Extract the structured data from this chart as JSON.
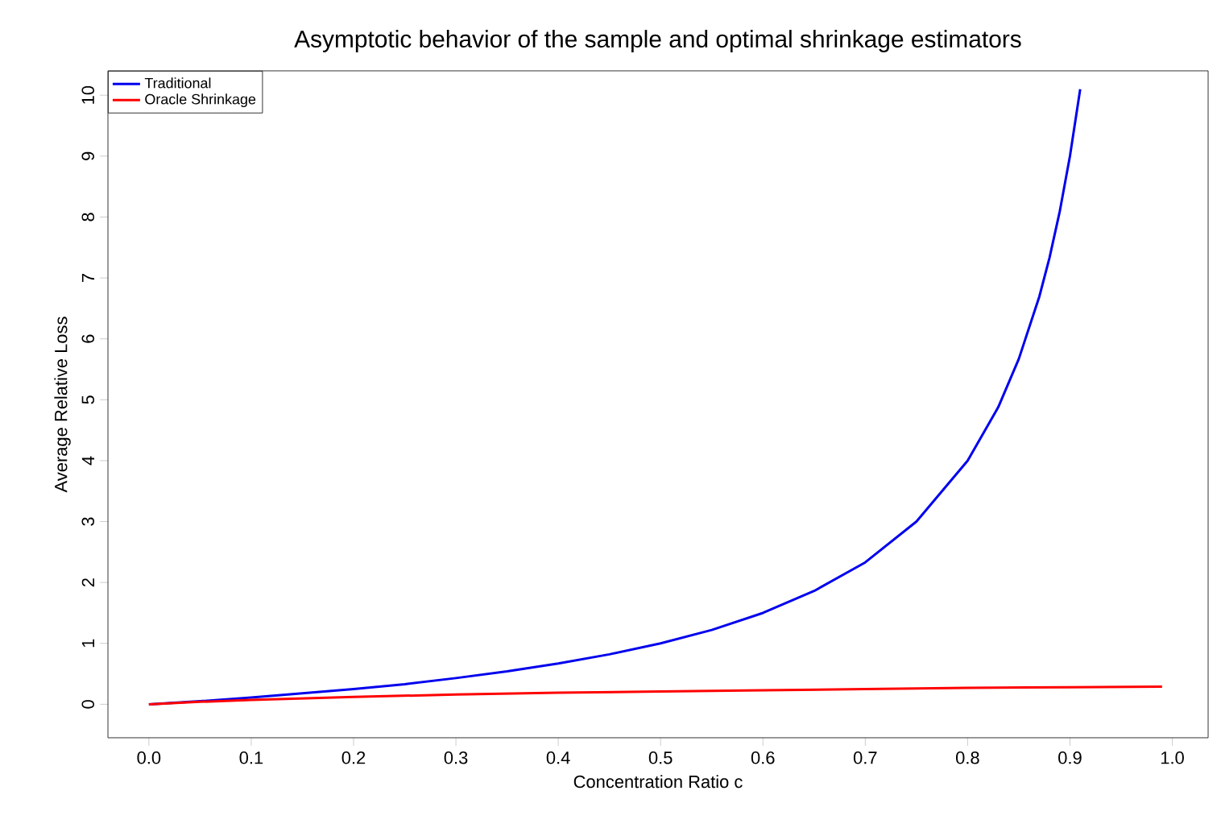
{
  "chart_data": {
    "type": "line",
    "title": "Asymptotic behavior of the sample and optimal shrinkage estimators",
    "xlabel": "Concentration Ratio c",
    "ylabel": "Average Relative Loss",
    "xlim": [
      -0.04,
      1.035
    ],
    "ylim": [
      -0.55,
      10.4
    ],
    "xticks": [
      {
        "value": 0,
        "label": "0.0"
      },
      0.1,
      0.2,
      0.3,
      0.4,
      0.5,
      0.6,
      0.7,
      0.8,
      0.9,
      {
        "value": 1,
        "label": "1.0"
      }
    ],
    "yticks": [
      0,
      1,
      2,
      3,
      4,
      5,
      6,
      7,
      8,
      9,
      10
    ],
    "legend": "top left",
    "grid": false,
    "marker": "none",
    "line_style": "solid",
    "series": [
      {
        "name": "Traditional",
        "color": "#0000ee",
        "x": [
          0,
          0.05,
          0.1,
          0.15,
          0.2,
          0.25,
          0.3,
          0.35,
          0.4,
          0.45,
          0.5,
          0.55,
          0.6,
          0.65,
          0.7,
          0.75,
          0.8,
          0.83,
          0.85,
          0.87,
          0.88,
          0.89,
          0.9,
          0.91
        ],
        "values": [
          0,
          0.05,
          0.11,
          0.18,
          0.25,
          0.33,
          0.43,
          0.54,
          0.67,
          0.82,
          1.0,
          1.22,
          1.5,
          1.86,
          2.33,
          3.0,
          4.0,
          4.88,
          5.67,
          6.69,
          7.33,
          8.09,
          9.0,
          10.1
        ]
      },
      {
        "name": "Oracle Shrinkage",
        "color": "#ff0000",
        "x": [
          0,
          0.05,
          0.1,
          0.2,
          0.3,
          0.4,
          0.5,
          0.6,
          0.7,
          0.8,
          0.9,
          0.99
        ],
        "values": [
          0,
          0.04,
          0.07,
          0.12,
          0.16,
          0.19,
          0.21,
          0.23,
          0.25,
          0.27,
          0.28,
          0.29
        ]
      }
    ]
  }
}
